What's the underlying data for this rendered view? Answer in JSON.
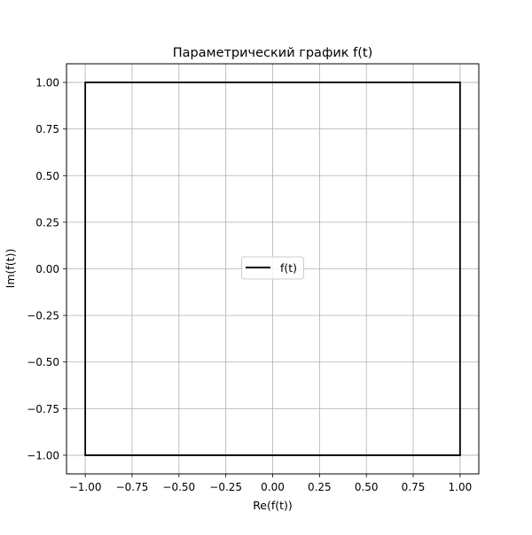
{
  "chart_data": {
    "type": "line",
    "title": "Параметрический график f(t)",
    "xlabel": "Re(f(t))",
    "ylabel": "Im(f(t))",
    "xlim": [
      -1.1,
      1.1
    ],
    "ylim": [
      -1.1,
      1.1
    ],
    "xticks": [
      -1.0,
      -0.75,
      -0.5,
      -0.25,
      0.0,
      0.25,
      0.5,
      0.75,
      1.0
    ],
    "yticks": [
      -1.0,
      -0.75,
      -0.5,
      -0.25,
      0.0,
      0.25,
      0.5,
      0.75,
      1.0
    ],
    "xtick_labels": [
      "−1.00",
      "−0.75",
      "−0.50",
      "−0.25",
      "0.00",
      "0.25",
      "0.50",
      "0.75",
      "1.00"
    ],
    "ytick_labels": [
      "−1.00",
      "−0.75",
      "−0.50",
      "−0.25",
      "0.00",
      "0.25",
      "0.50",
      "0.75",
      "1.00"
    ],
    "grid": true,
    "legend_position": "center",
    "series": [
      {
        "name": "f(t)",
        "color": "#000000",
        "x": [
          -1.0,
          1.0,
          1.0,
          -1.0,
          -1.0
        ],
        "y": [
          1.0,
          1.0,
          -1.0,
          -1.0,
          1.0
        ]
      }
    ]
  }
}
